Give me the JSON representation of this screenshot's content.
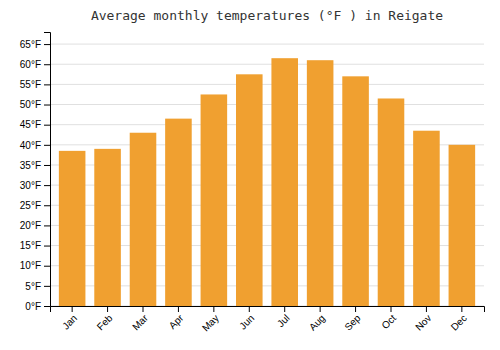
{
  "chart_data": {
    "type": "bar",
    "title": "Average monthly temperatures (°F ) in Reigate",
    "categories": [
      "Jan",
      "Feb",
      "Mar",
      "Apr",
      "May",
      "Jun",
      "Jul",
      "Aug",
      "Sep",
      "Oct",
      "Nov",
      "Dec"
    ],
    "values": [
      38.5,
      39.0,
      43.0,
      46.5,
      52.5,
      57.5,
      61.5,
      61.0,
      57.0,
      51.5,
      43.5,
      40.0
    ],
    "color": "#F0A030",
    "ylim": [
      0,
      68
    ],
    "yticks": [
      {
        "value": 0,
        "label": "0°F"
      },
      {
        "value": 5,
        "label": "5°F"
      },
      {
        "value": 10,
        "label": "10°F"
      },
      {
        "value": 15,
        "label": "15°F"
      },
      {
        "value": 20,
        "label": "20°F"
      },
      {
        "value": 25,
        "label": "25°F"
      },
      {
        "value": 30,
        "label": "30°F"
      },
      {
        "value": 35,
        "label": "35°F"
      },
      {
        "value": 40,
        "label": "40°F"
      },
      {
        "value": 45,
        "label": "45°F"
      },
      {
        "value": 50,
        "label": "50°F"
      },
      {
        "value": 55,
        "label": "55°F"
      },
      {
        "value": 60,
        "label": "60°F"
      },
      {
        "value": 65,
        "label": "65°F"
      }
    ],
    "grid": true
  }
}
